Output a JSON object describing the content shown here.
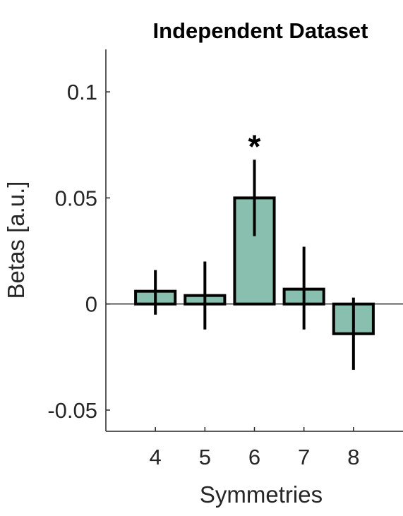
{
  "chart_data": {
    "type": "bar",
    "title": "Independent Dataset",
    "xlabel": "Symmetries",
    "ylabel": "Betas [a.u.]",
    "categories": [
      "4",
      "5",
      "6",
      "7",
      "8"
    ],
    "values": [
      0.006,
      0.004,
      0.05,
      0.007,
      -0.014
    ],
    "error_low": [
      -0.005,
      -0.012,
      0.032,
      -0.012,
      -0.031
    ],
    "error_high": [
      0.016,
      0.02,
      0.068,
      0.027,
      0.003
    ],
    "significance": [
      "",
      "",
      "*",
      "",
      ""
    ],
    "ylim": [
      -0.06,
      0.12
    ],
    "yticks": [
      -0.05,
      0,
      0.05,
      0.1
    ],
    "ytick_labels": [
      "-0.05",
      "0",
      "0.05",
      "0.1"
    ],
    "xlim": [
      3,
      9
    ],
    "bar_color": "#88bfae",
    "edge_color": "#000000",
    "zero_line": true,
    "grid": false
  }
}
